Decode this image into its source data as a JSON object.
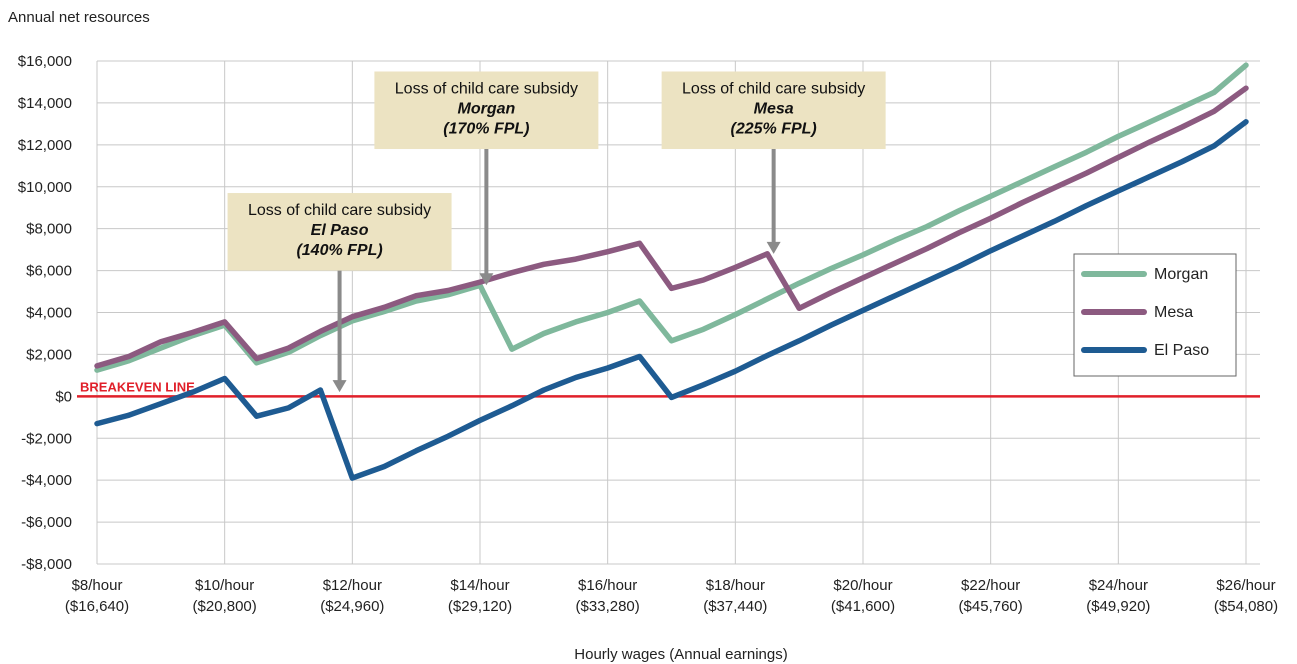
{
  "chart_data": {
    "type": "line",
    "ylabel": "Annual net resources",
    "xlabel": "Hourly wages (Annual earnings)",
    "ylim": [
      -8000,
      16000
    ],
    "xlim": [
      8,
      26
    ],
    "grid": true,
    "legend_position": "right",
    "y_ticks": [
      {
        "value": 16000,
        "label": "$16,000"
      },
      {
        "value": 14000,
        "label": "$14,000"
      },
      {
        "value": 12000,
        "label": "$12,000"
      },
      {
        "value": 10000,
        "label": "$10,000"
      },
      {
        "value": 8000,
        "label": "$8,000"
      },
      {
        "value": 6000,
        "label": "$6,000"
      },
      {
        "value": 4000,
        "label": "$4,000"
      },
      {
        "value": 2000,
        "label": "$2,000"
      },
      {
        "value": 0,
        "label": "$0"
      },
      {
        "value": -2000,
        "label": "-$2,000"
      },
      {
        "value": -4000,
        "label": "-$4,000"
      },
      {
        "value": -6000,
        "label": "-$6,000"
      },
      {
        "value": -8000,
        "label": "-$8,000"
      }
    ],
    "x_ticks": [
      {
        "value": 8,
        "line1": "$8/hour",
        "line2": "($16,640)"
      },
      {
        "value": 10,
        "line1": "$10/hour",
        "line2": "($20,800)"
      },
      {
        "value": 12,
        "line1": "$12/hour",
        "line2": "($24,960)"
      },
      {
        "value": 14,
        "line1": "$14/hour",
        "line2": "($29,120)"
      },
      {
        "value": 16,
        "line1": "$16/hour",
        "line2": "($33,280)"
      },
      {
        "value": 18,
        "line1": "$18/hour",
        "line2": "($37,440)"
      },
      {
        "value": 20,
        "line1": "$20/hour",
        "line2": "($41,600)"
      },
      {
        "value": 22,
        "line1": "$22/hour",
        "line2": "($45,760)"
      },
      {
        "value": 24,
        "line1": "$24/hour",
        "line2": "($49,920)"
      },
      {
        "value": 26,
        "line1": "$26/hour",
        "line2": "($54,080)"
      }
    ],
    "x": [
      8,
      8.5,
      9,
      9.5,
      10,
      10.5,
      11,
      11.5,
      12,
      12.5,
      13,
      13.5,
      14,
      14.5,
      15,
      15.5,
      16,
      16.5,
      17,
      17.5,
      18,
      18.5,
      19,
      19.5,
      20,
      20.5,
      21,
      21.5,
      22,
      22.5,
      23,
      23.5,
      24,
      24.5,
      25,
      25.5,
      26
    ],
    "series": [
      {
        "name": "Morgan",
        "color": "#7fb89c",
        "values": [
          1250,
          1700,
          2300,
          2900,
          3400,
          1600,
          2100,
          2900,
          3600,
          4050,
          4550,
          4850,
          5300,
          2250,
          3000,
          3550,
          4000,
          4550,
          2650,
          3200,
          3900,
          4650,
          5400,
          6100,
          6750,
          7450,
          8100,
          8850,
          9550,
          10250,
          10950,
          11650,
          12400,
          13100,
          13800,
          14500,
          15800
        ]
      },
      {
        "name": "Mesa",
        "color": "#8c5a80",
        "values": [
          1450,
          1900,
          2600,
          3050,
          3550,
          1800,
          2300,
          3100,
          3800,
          4250,
          4800,
          5050,
          5450,
          5900,
          6300,
          6550,
          6900,
          7300,
          5150,
          5550,
          6150,
          6800,
          4200,
          4950,
          5650,
          6350,
          7050,
          7800,
          8500,
          9250,
          9950,
          10650,
          11400,
          12150,
          12850,
          13600,
          14700
        ]
      },
      {
        "name": "El Paso",
        "color": "#1e5b92",
        "values": [
          -1300,
          -900,
          -350,
          200,
          850,
          -950,
          -550,
          300,
          -3900,
          -3350,
          -2600,
          -1900,
          -1150,
          -450,
          300,
          900,
          1350,
          1900,
          -50,
          550,
          1200,
          1950,
          2650,
          3400,
          4100,
          4800,
          5500,
          6200,
          6950,
          7650,
          8350,
          9100,
          9800,
          10500,
          11200,
          11950,
          13100
        ]
      }
    ],
    "breakeven": {
      "value": 0,
      "label": "BREAKEVEN LINE",
      "color": "#e0202a"
    },
    "annotations": [
      {
        "line1": "Loss of child care subsidy",
        "line2": "El Paso",
        "line3": "(140% FPL)",
        "target_x": 11.8,
        "target_y": 200,
        "box_cx": 11.8,
        "box_top_y": 9700,
        "box_bottom_y": 6000
      },
      {
        "line1": "Loss of child care subsidy",
        "line2": "Morgan",
        "line3": "(170% FPL)",
        "target_x": 14.1,
        "target_y": 5300,
        "box_cx": 14.1,
        "box_top_y": 15500,
        "box_bottom_y": 11800
      },
      {
        "line1": "Loss of child care subsidy",
        "line2": "Mesa",
        "line3": "(225% FPL)",
        "target_x": 18.6,
        "target_y": 6800,
        "box_cx": 18.6,
        "box_top_y": 15500,
        "box_bottom_y": 11800
      }
    ]
  }
}
